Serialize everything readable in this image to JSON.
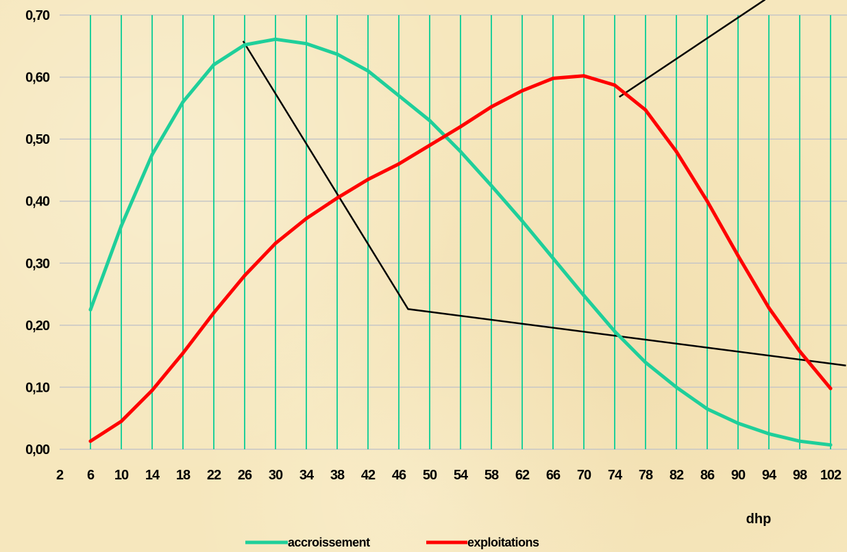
{
  "chart_data": {
    "type": "line",
    "xlabel": "dhp",
    "ylabel": "",
    "ylim": [
      0,
      0.7
    ],
    "y_ticks": [
      "0,00",
      "0,10",
      "0,20",
      "0,30",
      "0,40",
      "0,50",
      "0,60",
      "0,70"
    ],
    "x_ticks": [
      "2",
      "6",
      "10",
      "14",
      "18",
      "22",
      "26",
      "30",
      "34",
      "38",
      "42",
      "46",
      "50",
      "54",
      "58",
      "62",
      "66",
      "70",
      "74",
      "78",
      "82",
      "86",
      "90",
      "94",
      "98",
      "102"
    ],
    "x": [
      6,
      10,
      14,
      18,
      22,
      26,
      30,
      34,
      38,
      42,
      46,
      50,
      54,
      58,
      62,
      66,
      70,
      74,
      78,
      82,
      86,
      90,
      94,
      98,
      102
    ],
    "series": [
      {
        "name": "accroissement",
        "color": "#1fcf9a",
        "values": [
          0.225,
          0.36,
          0.475,
          0.56,
          0.62,
          0.652,
          0.661,
          0.654,
          0.637,
          0.61,
          0.57,
          0.53,
          0.48,
          0.425,
          0.368,
          0.308,
          0.248,
          0.19,
          0.14,
          0.1,
          0.065,
          0.042,
          0.025,
          0.013,
          0.007
        ]
      },
      {
        "name": "exploitations",
        "color": "#ff0000",
        "values": [
          0.013,
          0.045,
          0.095,
          0.155,
          0.22,
          0.28,
          0.332,
          0.372,
          0.405,
          0.435,
          0.46,
          0.49,
          0.52,
          0.552,
          0.578,
          0.598,
          0.602,
          0.587,
          0.547,
          0.48,
          0.4,
          0.312,
          0.228,
          0.158,
          0.098
        ]
      }
    ],
    "annotation_lines": [
      {
        "points": [
          [
            25.8,
            0.658
          ],
          [
            47.2,
            0.226
          ],
          [
            104,
            0.135
          ]
        ]
      },
      {
        "points": [
          [
            74.6,
            0.568
          ],
          [
            93.5,
            0.725
          ]
        ]
      }
    ],
    "grid": {
      "vertical": true,
      "horizontal": true
    },
    "legend_position": "bottom"
  }
}
